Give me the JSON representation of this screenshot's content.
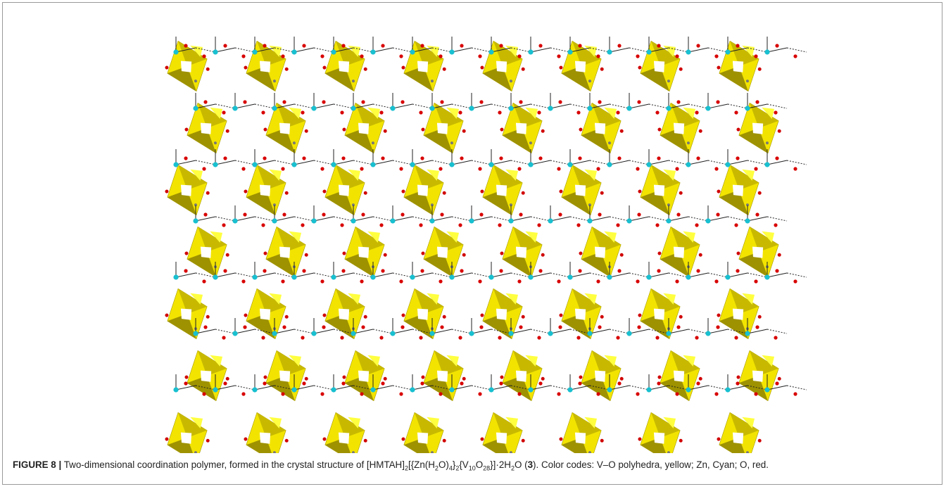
{
  "caption": {
    "label": "FIGURE 8 |",
    "parts": [
      {
        "text": " Two-dimensional coordination polymer, formed in the crystal structure of [HMTAH]"
      },
      {
        "text": "2",
        "sub": true
      },
      {
        "text": "[{Zn(H"
      },
      {
        "text": "2",
        "sub": true
      },
      {
        "text": "O)"
      },
      {
        "text": "4",
        "sub": true
      },
      {
        "text": "}"
      },
      {
        "text": "2",
        "sub": true
      },
      {
        "text": "{V"
      },
      {
        "text": "10",
        "sub": true
      },
      {
        "text": "O"
      },
      {
        "text": "28",
        "sub": true
      },
      {
        "text": "}]·2H"
      },
      {
        "text": "2",
        "sub": true
      },
      {
        "text": "O ("
      },
      {
        "text": "3",
        "bold": true
      },
      {
        "text": "). Color codes: V–O polyhedra, yellow; Zn, Cyan; O, red."
      }
    ]
  }
}
